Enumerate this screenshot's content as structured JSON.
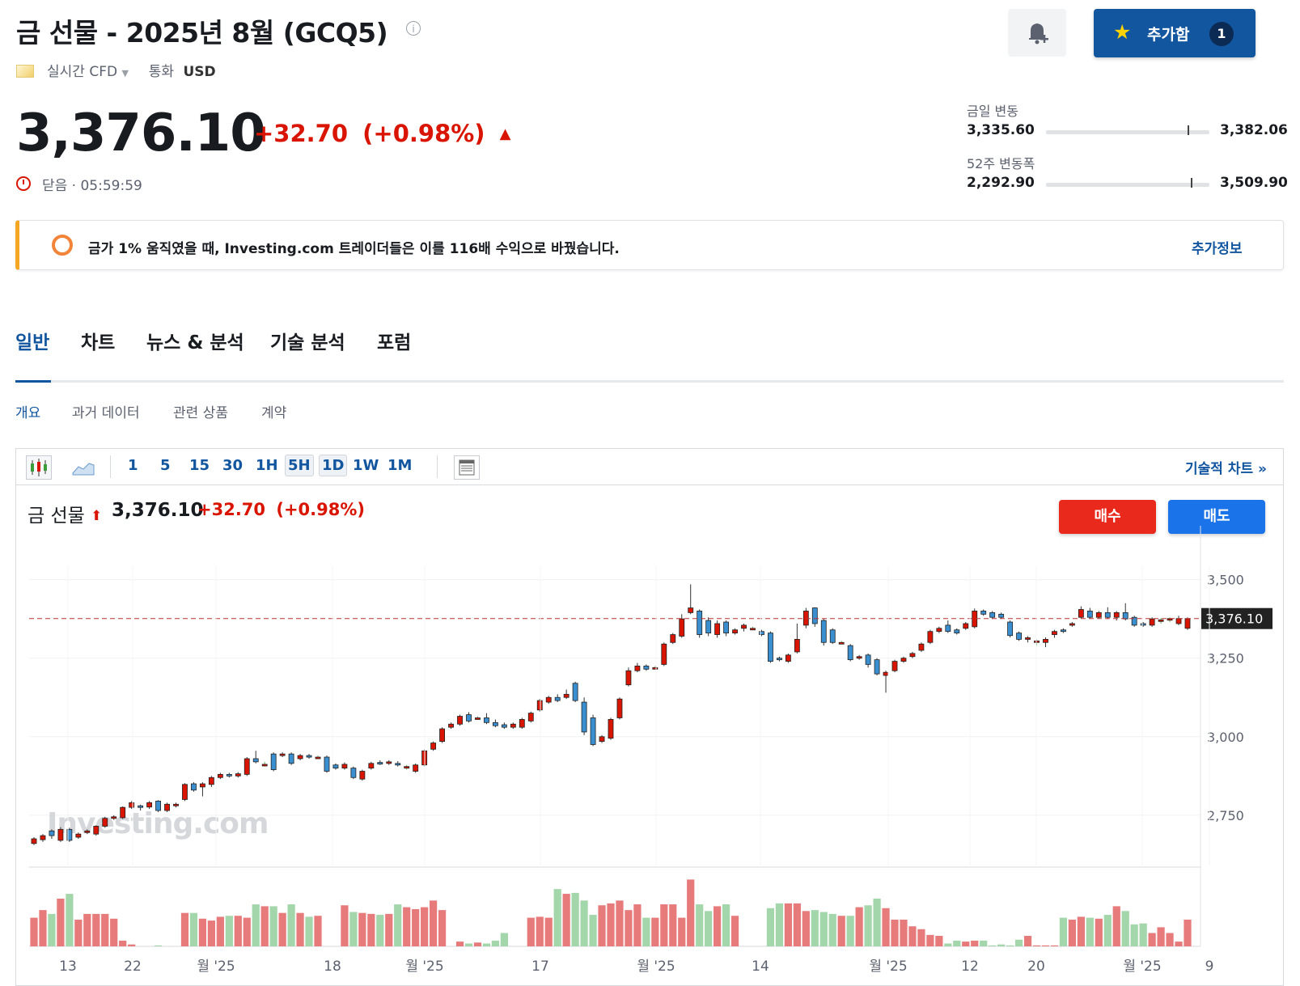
{
  "header": {
    "title": "금 선물 - 2025년 8월 (GCQ5)",
    "info_icon": "i",
    "add_label": "추가함",
    "add_count": "1",
    "market_type": "실시간 CFD",
    "currency_label": "통화",
    "currency": "USD"
  },
  "quote": {
    "price": "3,376.10",
    "change": "+32.70",
    "change_pct": "(+0.98%)",
    "status": "닫음 · 05:59:59",
    "up_color": "#d91400"
  },
  "ranges": {
    "day": {
      "label": "금일 변동",
      "low": "3,335.60",
      "high": "3,382.06",
      "position": 0.87
    },
    "week52": {
      "label": "52주 변동폭",
      "low": "2,292.90",
      "high": "3,509.90",
      "position": 0.89
    }
  },
  "banner": {
    "text": "금가 1% 움직였을 때, Investing.com 트레이더들은 이를 116배 수익으로 바꿨습니다.",
    "more": "추가정보"
  },
  "tabs": [
    "일반",
    "차트",
    "뉴스 & 분석",
    "기술 분석",
    "포럼"
  ],
  "subtabs": [
    "개요",
    "과거 데이터",
    "관련 상품",
    "계약"
  ],
  "toolbar": {
    "intervals": [
      "1",
      "5",
      "15",
      "30",
      "1H",
      "5H",
      "1D",
      "1W",
      "1M"
    ],
    "selected": [
      "5H",
      "1D"
    ],
    "technical_chart": "기술적 차트 »"
  },
  "chart_header": {
    "name": "금 선물",
    "price": "3,376.10",
    "change": "+32.70",
    "change_pct": "(+0.98%)",
    "buy": "매수",
    "sell": "매도"
  },
  "chart_data": {
    "type": "candlestick",
    "watermark": "Investing.com",
    "ylim": [
      2590,
      3620
    ],
    "y_ticks": [
      2750,
      3000,
      3250,
      3500
    ],
    "y_tick_labels": [
      "2,750",
      "3,000",
      "3,250",
      "3,500"
    ],
    "last_price": 3376.1,
    "last_price_label": "3,376.10",
    "up_color": "#d91400",
    "down_color": "#3a8fd0",
    "x_labels": [
      "13",
      "22",
      "월 '25",
      "18",
      "월 '25",
      "17",
      "월 '25",
      "14",
      "월 '25",
      "12",
      "20",
      "월 '25",
      "9"
    ],
    "candles": [
      [
        2660,
        2675,
        2655,
        2680,
        30
      ],
      [
        2672,
        2685,
        2665,
        2690,
        38
      ],
      [
        2700,
        2685,
        2675,
        2705,
        34
      ],
      [
        2670,
        2705,
        2665,
        2712,
        50
      ],
      [
        2705,
        2670,
        2665,
        2710,
        55
      ],
      [
        2680,
        2690,
        2675,
        2695,
        28
      ],
      [
        2695,
        2700,
        2690,
        2705,
        34
      ],
      [
        2690,
        2715,
        2685,
        2718,
        34
      ],
      [
        2715,
        2740,
        2710,
        2745,
        34
      ],
      [
        2740,
        2745,
        2735,
        2750,
        29
      ],
      [
        2742,
        2775,
        2738,
        2778,
        6
      ],
      [
        2775,
        2790,
        2770,
        2795,
        2
      ],
      [
        2780,
        2775,
        2765,
        2784,
        0
      ],
      [
        2776,
        2790,
        2770,
        2795,
        0
      ],
      [
        2795,
        2765,
        2760,
        2798,
        1
      ],
      [
        2765,
        2785,
        2760,
        2790,
        0
      ],
      [
        2780,
        2785,
        2775,
        2790,
        0
      ],
      [
        2800,
        2848,
        2795,
        2852,
        35
      ],
      [
        2850,
        2830,
        2825,
        2855,
        35
      ],
      [
        2840,
        2850,
        2810,
        2855,
        29
      ],
      [
        2848,
        2870,
        2840,
        2875,
        27
      ],
      [
        2870,
        2880,
        2865,
        2885,
        31
      ],
      [
        2880,
        2875,
        2870,
        2885,
        32
      ],
      [
        2875,
        2882,
        2870,
        2887,
        32
      ],
      [
        2880,
        2930,
        2875,
        2935,
        30
      ],
      [
        2930,
        2920,
        2915,
        2955,
        44
      ],
      [
        2910,
        2912,
        2905,
        2920,
        42
      ],
      [
        2945,
        2895,
        2890,
        2950,
        42
      ],
      [
        2940,
        2945,
        2935,
        2950,
        35
      ],
      [
        2945,
        2915,
        2910,
        2950,
        44
      ],
      [
        2930,
        2940,
        2925,
        2945,
        35
      ],
      [
        2940,
        2935,
        2930,
        2945,
        31
      ],
      [
        2935,
        2935,
        2930,
        2940,
        32
      ],
      [
        2935,
        2890,
        2885,
        2940,
        0
      ],
      [
        2910,
        2900,
        2895,
        2915,
        0
      ],
      [
        2900,
        2912,
        2895,
        2918,
        43
      ],
      [
        2900,
        2870,
        2865,
        2905,
        36
      ],
      [
        2865,
        2890,
        2860,
        2895,
        35
      ],
      [
        2900,
        2915,
        2895,
        2920,
        34
      ],
      [
        2918,
        2915,
        2910,
        2925,
        33
      ],
      [
        2915,
        2920,
        2910,
        2925,
        34
      ],
      [
        2915,
        2910,
        2905,
        2922,
        44
      ],
      [
        2905,
        2905,
        2895,
        2910,
        41
      ],
      [
        2890,
        2910,
        2885,
        2915,
        39
      ],
      [
        2910,
        2955,
        2905,
        2960,
        41
      ],
      [
        2960,
        2980,
        2955,
        2985,
        48
      ],
      [
        2985,
        3025,
        2980,
        3030,
        38
      ],
      [
        3030,
        3040,
        3025,
        3045,
        0
      ],
      [
        3040,
        3065,
        3035,
        3070,
        5
      ],
      [
        3070,
        3050,
        3045,
        3078,
        3
      ],
      [
        3060,
        3060,
        3055,
        3065,
        4
      ],
      [
        3060,
        3045,
        3040,
        3075,
        3
      ],
      [
        3045,
        3035,
        3030,
        3055,
        6
      ],
      [
        3038,
        3030,
        3025,
        3045,
        14
      ],
      [
        3030,
        3040,
        3025,
        3045,
        0
      ],
      [
        3030,
        3055,
        3025,
        3060,
        0
      ],
      [
        3050,
        3075,
        3045,
        3080,
        30
      ],
      [
        3085,
        3115,
        3080,
        3120,
        31
      ],
      [
        3110,
        3125,
        3105,
        3130,
        30
      ],
      [
        3125,
        3115,
        3110,
        3135,
        60
      ],
      [
        3125,
        3135,
        3120,
        3150,
        55
      ],
      [
        3170,
        3115,
        3110,
        3175,
        56
      ],
      [
        3110,
        3015,
        3005,
        3125,
        48
      ],
      [
        3060,
        2975,
        2970,
        3070,
        33
      ],
      [
        2985,
        3000,
        2980,
        3005,
        43
      ],
      [
        2995,
        3055,
        2990,
        3060,
        45
      ],
      [
        3060,
        3120,
        3055,
        3125,
        48
      ],
      [
        3165,
        3210,
        3160,
        3220,
        38
      ],
      [
        3210,
        3225,
        3205,
        3235,
        44
      ],
      [
        3225,
        3215,
        3210,
        3230,
        30
      ],
      [
        3220,
        3220,
        3215,
        3225,
        30
      ],
      [
        3230,
        3295,
        3225,
        3300,
        44
      ],
      [
        3300,
        3325,
        3295,
        3330,
        44
      ],
      [
        3320,
        3375,
        3315,
        3390,
        30
      ],
      [
        3395,
        3410,
        3390,
        3485,
        70
      ],
      [
        3400,
        3325,
        3315,
        3405,
        44
      ],
      [
        3370,
        3330,
        3320,
        3380,
        37
      ],
      [
        3325,
        3360,
        3315,
        3370,
        42
      ],
      [
        3365,
        3330,
        3320,
        3370,
        44
      ],
      [
        3330,
        3340,
        3325,
        3345,
        32
      ],
      [
        3345,
        3355,
        3335,
        3360,
        0
      ],
      [
        3345,
        3345,
        3340,
        3350,
        0
      ],
      [
        3335,
        3325,
        3320,
        3340,
        0
      ],
      [
        3330,
        3240,
        3235,
        3335,
        40
      ],
      [
        3250,
        3245,
        3240,
        3255,
        45
      ],
      [
        3240,
        3260,
        3235,
        3265,
        45
      ],
      [
        3270,
        3310,
        3265,
        3360,
        45
      ],
      [
        3355,
        3400,
        3345,
        3410,
        37
      ],
      [
        3410,
        3360,
        3350,
        3412,
        38
      ],
      [
        3370,
        3300,
        3290,
        3375,
        36
      ],
      [
        3340,
        3300,
        3295,
        3345,
        34
      ],
      [
        3300,
        3300,
        3295,
        3305,
        32
      ],
      [
        3290,
        3245,
        3240,
        3295,
        32
      ],
      [
        3250,
        3255,
        3245,
        3260,
        41
      ],
      [
        3260,
        3230,
        3220,
        3265,
        43
      ],
      [
        3245,
        3200,
        3195,
        3250,
        50
      ],
      [
        3195,
        3205,
        3140,
        3210,
        40
      ],
      [
        3210,
        3240,
        3205,
        3245,
        28
      ],
      [
        3240,
        3250,
        3235,
        3255,
        28
      ],
      [
        3255,
        3265,
        3250,
        3270,
        21
      ],
      [
        3275,
        3295,
        3270,
        3300,
        18
      ],
      [
        3300,
        3335,
        3295,
        3340,
        12
      ],
      [
        3335,
        3345,
        3330,
        3350,
        11
      ],
      [
        3355,
        3335,
        3330,
        3370,
        3
      ],
      [
        3340,
        3330,
        3325,
        3345,
        6
      ],
      [
        3345,
        3360,
        3340,
        3365,
        5
      ],
      [
        3350,
        3400,
        3345,
        3408,
        6
      ],
      [
        3400,
        3390,
        3385,
        3405,
        6
      ],
      [
        3395,
        3380,
        3375,
        3400,
        1
      ],
      [
        3390,
        3380,
        3375,
        3395,
        2
      ],
      [
        3365,
        3322,
        3316,
        3370,
        1
      ],
      [
        3330,
        3310,
        3305,
        3335,
        7
      ],
      [
        3310,
        3315,
        3300,
        3320,
        11
      ],
      [
        3305,
        3305,
        3290,
        3310,
        1
      ],
      [
        3300,
        3310,
        3285,
        3316,
        1
      ],
      [
        3325,
        3335,
        3315,
        3340,
        1
      ],
      [
        3340,
        3335,
        3330,
        3345,
        30
      ],
      [
        3355,
        3360,
        3350,
        3365,
        28
      ],
      [
        3380,
        3405,
        3375,
        3415,
        31
      ],
      [
        3400,
        3380,
        3375,
        3410,
        30
      ],
      [
        3380,
        3395,
        3375,
        3400,
        29
      ],
      [
        3395,
        3380,
        3375,
        3412,
        33
      ],
      [
        3380,
        3395,
        3370,
        3400,
        42
      ],
      [
        3395,
        3375,
        3370,
        3425,
        37
      ],
      [
        3380,
        3355,
        3350,
        3385,
        23
      ],
      [
        3360,
        3355,
        3350,
        3365,
        24
      ],
      [
        3355,
        3375,
        3350,
        3380,
        14
      ],
      [
        3370,
        3372,
        3360,
        3378,
        20
      ],
      [
        3375,
        3376,
        3365,
        3380,
        14
      ],
      [
        3360,
        3376,
        3355,
        3385,
        5
      ],
      [
        3345,
        3376,
        3340,
        3380,
        28
      ]
    ]
  }
}
